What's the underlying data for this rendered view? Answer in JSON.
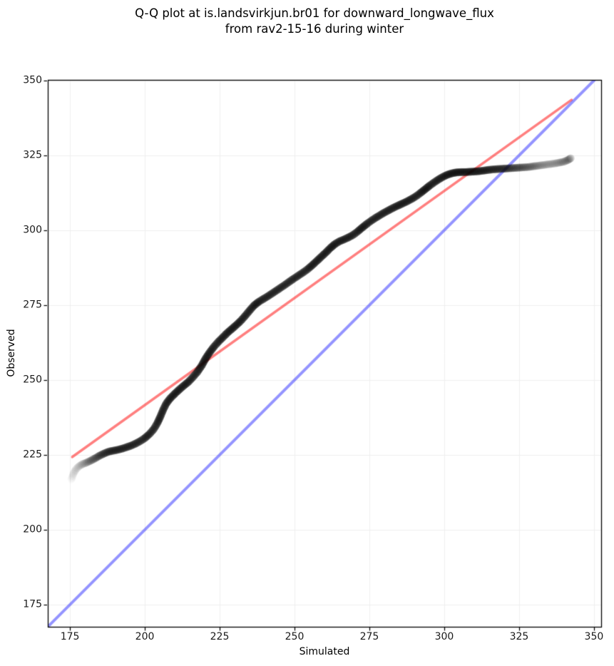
{
  "figure": {
    "title_line1": "Q-Q plot at is.landsvirkjun.br01 for downward_longwave_flux",
    "title_line2": "from rav2-15-16 during winter"
  },
  "chart_data": {
    "type": "scatter",
    "title": "Q-Q plot at is.landsvirkjun.br01 for downward_longwave_flux from rav2-15-16 during winter",
    "xlabel": "Simulated",
    "ylabel": "Observed",
    "xlim": [
      167.6,
      352.4
    ],
    "ylim": [
      167.6,
      350.2
    ],
    "xticks": [
      175,
      200,
      225,
      250,
      275,
      300,
      325,
      350
    ],
    "yticks": [
      175,
      200,
      225,
      250,
      275,
      300,
      325,
      350
    ],
    "grid": true,
    "grid_color": "#efefef",
    "legend_position": "none",
    "identity_line": {
      "name": "1:1 reference line",
      "color": "#0000ff",
      "alpha": 0.42,
      "width": 4,
      "x": [
        167.6,
        350.2
      ],
      "y": [
        167.6,
        350.2
      ]
    },
    "fit_line": {
      "name": "regression line",
      "color": "#ff0000",
      "alpha": 0.5,
      "width": 3.6,
      "x": [
        175.8,
        342.5
      ],
      "y": [
        224.3,
        343.5
      ]
    },
    "marker": {
      "color": "#000000",
      "radius": 5.6
    },
    "points_format": "[simulated, observed, density]",
    "points": [
      [
        175.5,
        216.8,
        0.07
      ],
      [
        176.2,
        218.8,
        0.1
      ],
      [
        177.0,
        220.2,
        0.14
      ],
      [
        178.0,
        221.2,
        0.2
      ],
      [
        179.2,
        221.9,
        0.28
      ],
      [
        180.5,
        222.4,
        0.36
      ],
      [
        182.0,
        223.1,
        0.46
      ],
      [
        183.5,
        223.9,
        0.55
      ],
      [
        185.0,
        224.8,
        0.65
      ],
      [
        186.5,
        225.5,
        0.72
      ],
      [
        188.0,
        226.1,
        0.76
      ],
      [
        189.5,
        226.4,
        0.78
      ],
      [
        191.0,
        226.7,
        0.78
      ],
      [
        192.5,
        227.1,
        0.78
      ],
      [
        194.0,
        227.6,
        0.78
      ],
      [
        195.5,
        228.1,
        0.78
      ],
      [
        197.0,
        228.8,
        0.8
      ],
      [
        198.5,
        229.6,
        0.8
      ],
      [
        200.0,
        230.6,
        0.82
      ],
      [
        201.5,
        231.9,
        0.82
      ],
      [
        203.0,
        233.6,
        0.84
      ],
      [
        204.2,
        235.6,
        0.84
      ],
      [
        205.2,
        237.8,
        0.84
      ],
      [
        206.2,
        240.2,
        0.86
      ],
      [
        207.2,
        242.2,
        0.88
      ],
      [
        208.5,
        243.9,
        0.9
      ],
      [
        210.0,
        245.4,
        0.9
      ],
      [
        211.5,
        246.8,
        0.86
      ],
      [
        213.0,
        248.1,
        0.84
      ],
      [
        214.5,
        249.3,
        0.84
      ],
      [
        216.0,
        250.9,
        0.84
      ],
      [
        217.5,
        252.6,
        0.86
      ],
      [
        219.0,
        254.8,
        0.9
      ],
      [
        220.2,
        257.0,
        0.9
      ],
      [
        221.5,
        259.0,
        0.88
      ],
      [
        223.0,
        261.0,
        0.86
      ],
      [
        224.5,
        262.7,
        0.86
      ],
      [
        226.0,
        264.2,
        0.86
      ],
      [
        227.5,
        265.7,
        0.86
      ],
      [
        229.0,
        267.0,
        0.86
      ],
      [
        230.5,
        268.3,
        0.86
      ],
      [
        232.0,
        269.7,
        0.88
      ],
      [
        233.5,
        271.4,
        0.9
      ],
      [
        235.0,
        273.2,
        0.9
      ],
      [
        236.5,
        274.9,
        0.88
      ],
      [
        238.0,
        276.1,
        0.86
      ],
      [
        239.5,
        277.0,
        0.84
      ],
      [
        241.0,
        277.9,
        0.84
      ],
      [
        242.5,
        278.9,
        0.84
      ],
      [
        244.0,
        279.9,
        0.84
      ],
      [
        245.5,
        280.9,
        0.84
      ],
      [
        247.0,
        281.9,
        0.84
      ],
      [
        248.5,
        283.0,
        0.84
      ],
      [
        250.0,
        284.0,
        0.84
      ],
      [
        251.5,
        285.0,
        0.84
      ],
      [
        253.0,
        286.0,
        0.84
      ],
      [
        254.5,
        287.1,
        0.84
      ],
      [
        256.0,
        288.4,
        0.86
      ],
      [
        257.5,
        289.8,
        0.86
      ],
      [
        259.0,
        291.2,
        0.86
      ],
      [
        260.5,
        292.6,
        0.88
      ],
      [
        262.0,
        294.1,
        0.9
      ],
      [
        263.5,
        295.4,
        0.9
      ],
      [
        265.0,
        296.3,
        0.88
      ],
      [
        266.5,
        296.9,
        0.86
      ],
      [
        268.0,
        297.6,
        0.86
      ],
      [
        269.5,
        298.4,
        0.86
      ],
      [
        271.0,
        299.5,
        0.86
      ],
      [
        272.5,
        300.8,
        0.86
      ],
      [
        274.0,
        302.0,
        0.86
      ],
      [
        275.5,
        303.1,
        0.86
      ],
      [
        277.0,
        304.1,
        0.86
      ],
      [
        278.5,
        305.0,
        0.86
      ],
      [
        280.0,
        305.9,
        0.86
      ],
      [
        281.5,
        306.7,
        0.86
      ],
      [
        283.0,
        307.5,
        0.86
      ],
      [
        284.5,
        308.2,
        0.88
      ],
      [
        286.0,
        308.9,
        0.88
      ],
      [
        287.5,
        309.6,
        0.88
      ],
      [
        289.0,
        310.4,
        0.88
      ],
      [
        290.5,
        311.3,
        0.88
      ],
      [
        292.0,
        312.4,
        0.88
      ],
      [
        293.5,
        313.6,
        0.9
      ],
      [
        295.0,
        314.8,
        0.9
      ],
      [
        296.5,
        315.9,
        0.9
      ],
      [
        298.0,
        316.9,
        0.92
      ],
      [
        299.5,
        317.8,
        0.92
      ],
      [
        301.0,
        318.5,
        0.92
      ],
      [
        302.5,
        319.0,
        0.92
      ],
      [
        304.0,
        319.3,
        0.92
      ],
      [
        305.5,
        319.4,
        0.9
      ],
      [
        307.0,
        319.4,
        0.9
      ],
      [
        308.5,
        319.5,
        0.88
      ],
      [
        310.0,
        319.6,
        0.86
      ],
      [
        311.5,
        319.7,
        0.84
      ],
      [
        313.0,
        319.9,
        0.82
      ],
      [
        314.5,
        320.1,
        0.78
      ],
      [
        316.0,
        320.3,
        0.74
      ],
      [
        317.5,
        320.4,
        0.72
      ],
      [
        319.0,
        320.5,
        0.7
      ],
      [
        320.5,
        320.6,
        0.66
      ],
      [
        322.0,
        320.7,
        0.6
      ],
      [
        323.5,
        320.8,
        0.55
      ],
      [
        325.0,
        320.9,
        0.5
      ],
      [
        326.5,
        321.0,
        0.46
      ],
      [
        328.0,
        321.1,
        0.42
      ],
      [
        329.5,
        321.3,
        0.38
      ],
      [
        331.0,
        321.5,
        0.33
      ],
      [
        332.5,
        321.7,
        0.28
      ],
      [
        334.0,
        321.9,
        0.26
      ],
      [
        335.5,
        322.1,
        0.25
      ],
      [
        337.0,
        322.3,
        0.26
      ],
      [
        338.5,
        322.6,
        0.3
      ],
      [
        340.0,
        322.9,
        0.36
      ],
      [
        341.2,
        323.4,
        0.42
      ],
      [
        342.2,
        324.0,
        0.45
      ]
    ]
  }
}
